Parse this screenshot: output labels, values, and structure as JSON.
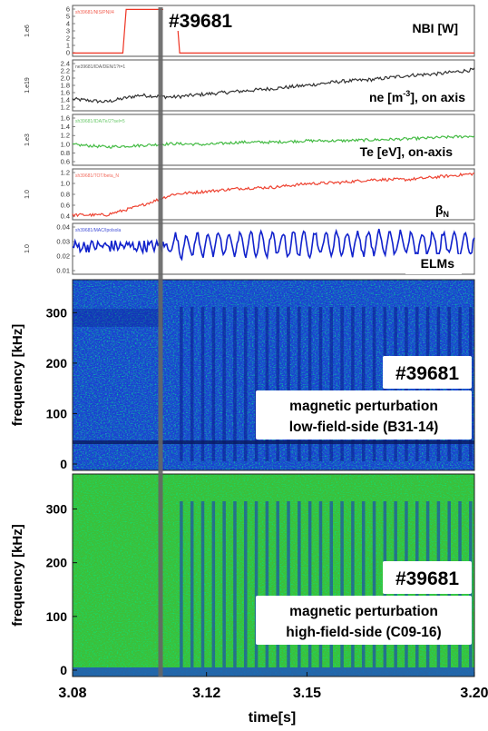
{
  "shot": "#39681",
  "panels": [
    {
      "label": "NBI [W]",
      "scale": "1.e6",
      "yticks": [
        "6",
        "5",
        "4",
        "3",
        "2",
        "1",
        "0"
      ],
      "tag": "sh39681/NIS/PNI/4"
    },
    {
      "label": "ne [m",
      "label_sup": "-3",
      "label_tail": "], on axis",
      "scale": "1.e19",
      "yticks": [
        "2.4",
        "2.2",
        "2.0",
        "1.8",
        "1.6",
        "1.4",
        "1.2"
      ],
      "tag": "ne39681/IDA/DEN/1?t=1"
    },
    {
      "label": "Te [eV], on-axis",
      "scale": "1.e3",
      "yticks": [
        "1.6",
        "1.4",
        "1.2",
        "1.0",
        "0.8",
        "0.6"
      ],
      "tag": "sh39681/IDA/Te/2?sel=5"
    },
    {
      "label": "β",
      "label_sub": "N",
      "scale": "1.0",
      "yticks": [
        "1.2",
        "1.0",
        "0.8",
        "0.6",
        "0.4"
      ],
      "tag": "sh39681/TOT/beta_N"
    },
    {
      "label": "ELMs",
      "scale": "1.0",
      "yticks": [
        "0.04",
        "0.03",
        "0.02",
        "0.01"
      ],
      "tag": "sh39681/MAC/Ipolsola"
    }
  ],
  "spectrograms": [
    {
      "shot": "#39681",
      "caption1": "magnetic perturbation",
      "caption2": "low-field-side (B31-14)",
      "ylabel": "frequency [kHz]",
      "yticks": [
        "300",
        "200",
        "100",
        "0"
      ]
    },
    {
      "shot": "#39681",
      "caption1": "magnetic perturbation",
      "caption2": "high-field-side (C09-16)",
      "ylabel": "frequency [kHz]",
      "yticks": [
        "300",
        "200",
        "100",
        "0"
      ]
    }
  ],
  "xaxis": {
    "label": "time[s]",
    "ticks": [
      "3.08",
      "3.12",
      "3.15",
      "3.20"
    ]
  },
  "colors": {
    "nbi": "#ee3322",
    "ne": "#333333",
    "te": "#44bb44",
    "beta": "#ee4433",
    "elms": "#1122cc",
    "marker": "#666666"
  },
  "chart_data": [
    {
      "type": "line",
      "title": "NBI [W]",
      "ylabel_scale": "1.e6",
      "ylim": [
        0,
        6.5
      ],
      "xlim": [
        3.08,
        3.2
      ],
      "series": [
        {
          "name": "NBI [W]",
          "x": [
            3.08,
            3.095,
            3.096,
            3.111,
            3.112,
            3.2
          ],
          "values": [
            0.2,
            0.2,
            6.2,
            6.2,
            0.2,
            0.2
          ]
        }
      ]
    },
    {
      "type": "line",
      "title": "ne [m-3], on axis",
      "ylabel_scale": "1.e19",
      "ylim": [
        1.2,
        2.4
      ],
      "xlim": [
        3.08,
        3.2
      ],
      "series": [
        {
          "name": "ne",
          "x": [
            3.08,
            3.09,
            3.1,
            3.11,
            3.12,
            3.13,
            3.14,
            3.15,
            3.16,
            3.17,
            3.18,
            3.19,
            3.2
          ],
          "values": [
            1.45,
            1.38,
            1.55,
            1.5,
            1.58,
            1.65,
            1.72,
            1.8,
            1.9,
            1.95,
            2.05,
            2.1,
            2.2
          ]
        }
      ]
    },
    {
      "type": "line",
      "title": "Te [eV], on-axis",
      "ylabel_scale": "1.e3",
      "ylim": [
        0.6,
        1.6
      ],
      "xlim": [
        3.08,
        3.2
      ],
      "series": [
        {
          "name": "Te",
          "x": [
            3.08,
            3.09,
            3.1,
            3.11,
            3.12,
            3.13,
            3.14,
            3.15,
            3.16,
            3.17,
            3.18,
            3.19,
            3.2
          ],
          "values": [
            1.0,
            0.95,
            0.98,
            1.02,
            1.0,
            1.05,
            1.05,
            1.08,
            1.08,
            1.1,
            1.12,
            1.15,
            1.18
          ]
        }
      ]
    },
    {
      "type": "line",
      "title": "βN",
      "ylim": [
        0.4,
        1.2
      ],
      "xlim": [
        3.08,
        3.2
      ],
      "series": [
        {
          "name": "βN",
          "x": [
            3.08,
            3.09,
            3.1,
            3.11,
            3.12,
            3.13,
            3.14,
            3.15,
            3.16,
            3.17,
            3.18,
            3.19,
            3.2
          ],
          "values": [
            0.45,
            0.45,
            0.6,
            0.8,
            0.85,
            0.9,
            0.92,
            0.98,
            1.0,
            1.05,
            1.05,
            1.1,
            1.15
          ]
        }
      ]
    },
    {
      "type": "line",
      "title": "ELMs",
      "ylim": [
        0.0,
        0.045
      ],
      "xlim": [
        3.08,
        3.2
      ],
      "series": [
        {
          "name": "ELMs",
          "x": [
            3.08,
            3.1,
            3.11,
            3.12,
            3.14,
            3.16,
            3.18,
            3.2
          ],
          "values": [
            0.025,
            0.025,
            0.025,
            0.027,
            0.027,
            0.028,
            0.028,
            0.028
          ]
        }
      ]
    },
    {
      "type": "heatmap",
      "title": "magnetic perturbation low-field-side (B31-14)",
      "ylabel": "frequency [kHz]",
      "xlabel": "time[s]",
      "ylim": [
        0,
        360
      ],
      "xlim": [
        3.08,
        3.2
      ]
    },
    {
      "type": "heatmap",
      "title": "magnetic perturbation high-field-side (C09-16)",
      "ylabel": "frequency [kHz]",
      "xlabel": "time[s]",
      "ylim": [
        0,
        360
      ],
      "xlim": [
        3.08,
        3.2
      ]
    }
  ]
}
